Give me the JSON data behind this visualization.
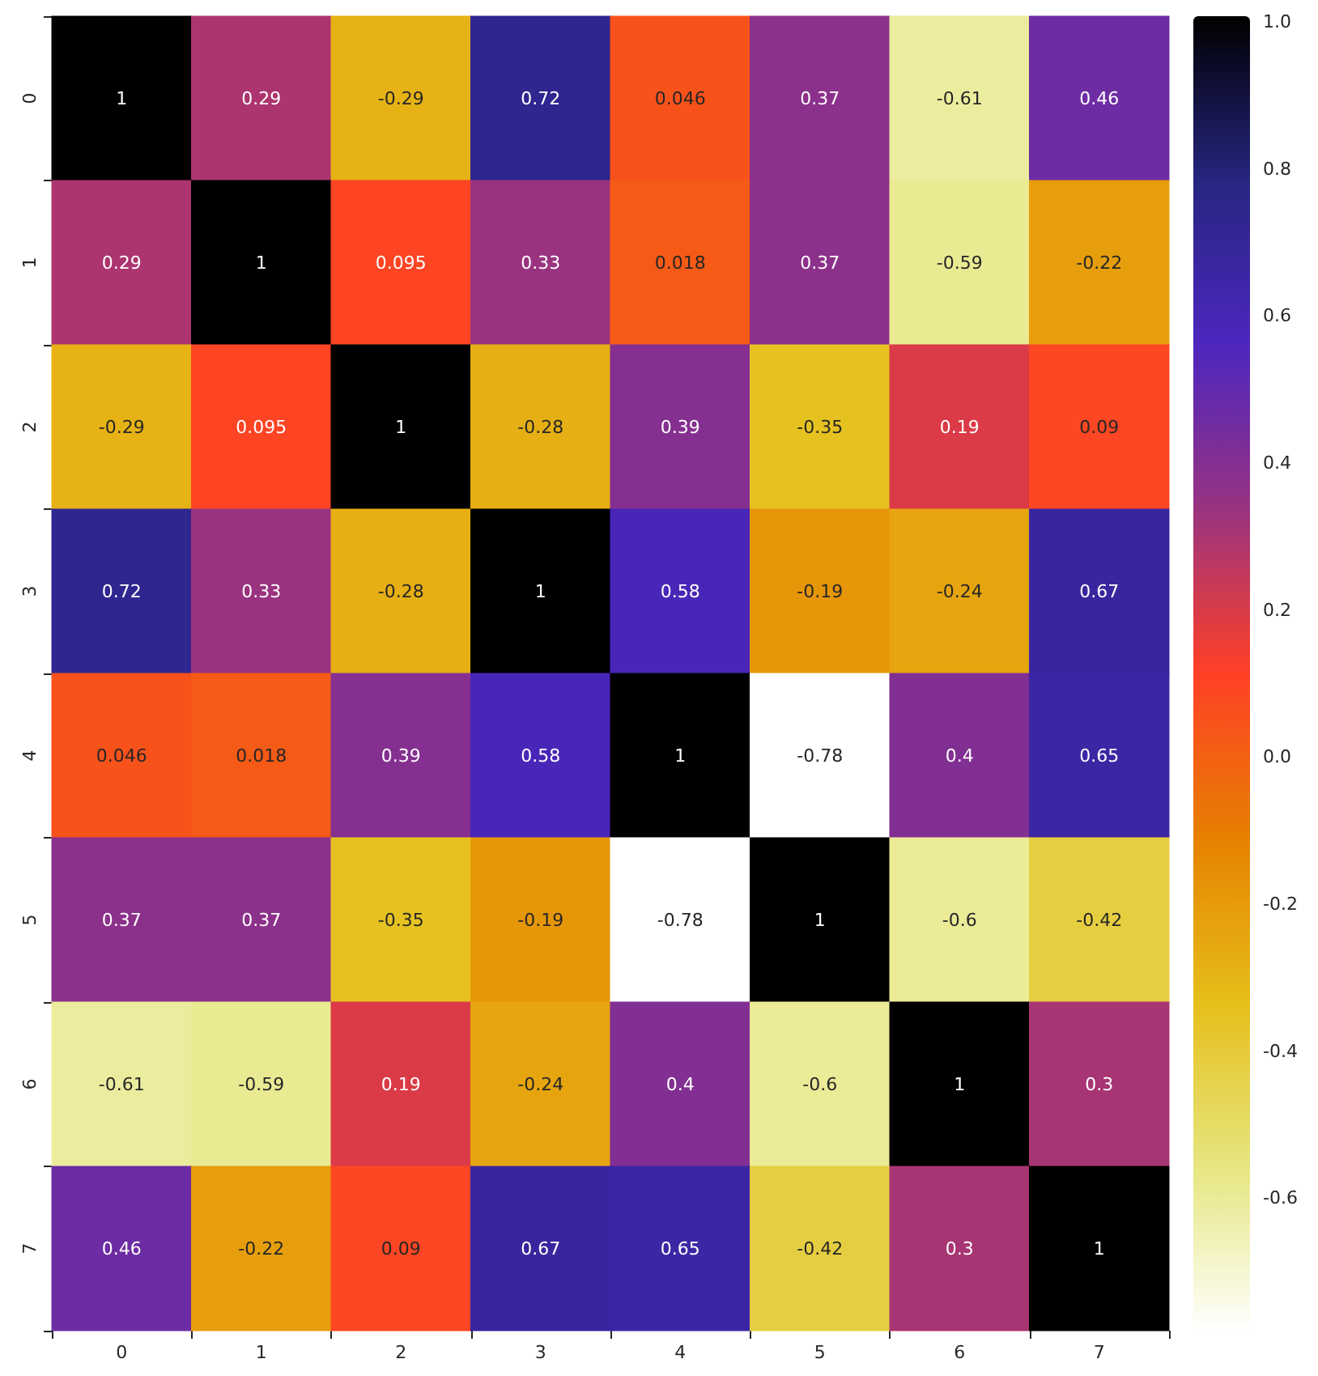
{
  "chart_data": {
    "type": "heatmap",
    "categories": [
      "0",
      "1",
      "2",
      "3",
      "4",
      "5",
      "6",
      "7"
    ],
    "y_categories": [
      "0",
      "1",
      "2",
      "3",
      "4",
      "5",
      "6",
      "7"
    ],
    "cells": [
      [
        1,
        0.29,
        -0.29,
        0.72,
        0.046,
        0.37,
        -0.61,
        0.46
      ],
      [
        0.29,
        1,
        0.095,
        0.33,
        0.018,
        0.37,
        -0.59,
        -0.22
      ],
      [
        -0.29,
        0.095,
        1,
        -0.28,
        0.39,
        -0.35,
        0.19,
        0.09
      ],
      [
        0.72,
        0.33,
        -0.28,
        1,
        0.58,
        -0.19,
        -0.24,
        0.67
      ],
      [
        0.046,
        0.018,
        0.39,
        0.58,
        1,
        -0.78,
        0.4,
        0.65
      ],
      [
        0.37,
        0.37,
        -0.35,
        -0.19,
        -0.78,
        1,
        -0.6,
        -0.42
      ],
      [
        -0.61,
        -0.59,
        0.19,
        -0.24,
        0.4,
        -0.6,
        1,
        0.3
      ],
      [
        0.46,
        -0.22,
        0.09,
        0.67,
        0.65,
        -0.42,
        0.3,
        1
      ]
    ],
    "clim": [
      -0.78,
      1
    ],
    "cticks": [
      -0.6,
      -0.4,
      -0.2,
      {
        "value": 0,
        "label": "0.0"
      },
      0.2,
      0.4,
      0.6,
      0.8,
      {
        "value": 1,
        "label": "1.0"
      }
    ],
    "data_labels": true
  }
}
